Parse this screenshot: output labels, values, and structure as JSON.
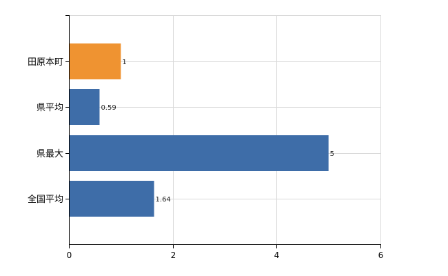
{
  "chart_data": {
    "type": "bar",
    "orientation": "horizontal",
    "categories": [
      "田原本町",
      "県平均",
      "県最大",
      "全国平均"
    ],
    "values": [
      1,
      0.59,
      5,
      1.64
    ],
    "data_labels": [
      "1",
      "0.59",
      "5",
      "1.64"
    ],
    "xlim": [
      0,
      6
    ],
    "xticks": [
      "0",
      "2",
      "4",
      "6"
    ],
    "grid": true,
    "title": "",
    "xlabel": "",
    "ylabel": "",
    "colors": {
      "highlight": "#EF9331",
      "default": "#3E6DA8"
    },
    "highlight_index": 0
  }
}
